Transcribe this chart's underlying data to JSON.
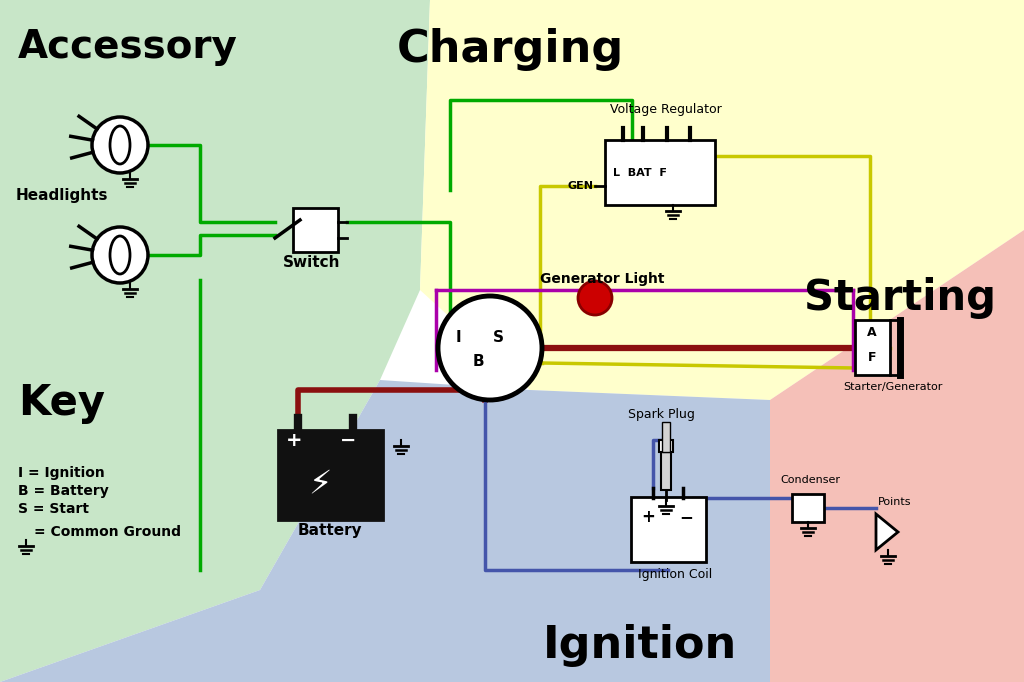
{
  "bg_color": "#ffffff",
  "zone_accessory_color": "#c8e6c8",
  "zone_charging_color": "#ffffcc",
  "zone_starting_color": "#f5c0b8",
  "zone_ignition_color": "#b8c8e0",
  "wire_green": "#00aa00",
  "wire_yellow": "#c8c800",
  "wire_dark_red": "#8b1010",
  "wire_purple": "#aa00aa",
  "wire_blue": "#4455aa",
  "label_accessory": "Accessory",
  "label_charging": "Charging",
  "label_starting": "Starting",
  "label_ignition": "Ignition",
  "label_key": "Key"
}
